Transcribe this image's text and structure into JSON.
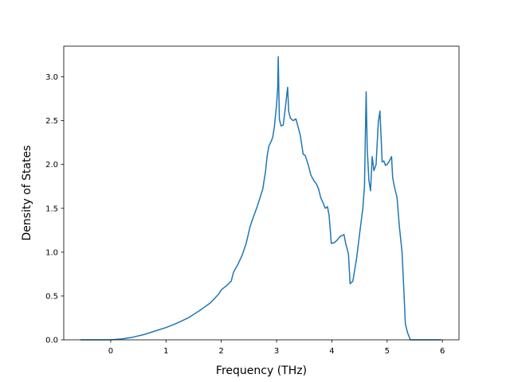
{
  "chart_data": {
    "type": "line",
    "title": "",
    "xlabel": "Frequency (THz)",
    "ylabel": "Density of States",
    "xlim": [
      -0.85,
      6.3
    ],
    "ylim": [
      0,
      3.35
    ],
    "xticks": [
      0,
      1,
      2,
      3,
      4,
      5,
      6
    ],
    "xtick_labels": [
      "0",
      "1",
      "2",
      "3",
      "4",
      "5",
      "6"
    ],
    "yticks": [
      0,
      0.5,
      1.0,
      1.5,
      2.0,
      2.5,
      3.0
    ],
    "ytick_labels": [
      "0.0",
      "0.5",
      "1.0",
      "1.5",
      "2.0",
      "2.5",
      "3.0"
    ],
    "grid": false,
    "legend": "none",
    "colors": {
      "line": "#1f77b4",
      "axes": "#000000"
    },
    "series": [
      {
        "x": [
          -0.55,
          -0.3,
          0.0,
          0.2,
          0.4,
          0.6,
          0.8,
          1.0,
          1.2,
          1.4,
          1.6,
          1.8,
          1.95,
          2.0,
          2.1,
          2.18,
          2.22,
          2.3,
          2.38,
          2.45,
          2.52,
          2.58,
          2.65,
          2.7,
          2.75,
          2.8,
          2.83,
          2.86,
          2.9,
          2.93,
          2.96,
          3.0,
          3.02,
          3.03,
          3.05,
          3.08,
          3.12,
          3.15,
          3.2,
          3.22,
          3.25,
          3.3,
          3.35,
          3.38,
          3.43,
          3.48,
          3.52,
          3.58,
          3.62,
          3.68,
          3.72,
          3.76,
          3.8,
          3.85,
          3.88,
          3.92,
          3.95,
          3.99,
          4.05,
          4.1,
          4.15,
          4.22,
          4.25,
          4.3,
          4.33,
          4.38,
          4.45,
          4.5,
          4.56,
          4.59,
          4.62,
          4.64,
          4.67,
          4.7,
          4.73,
          4.76,
          4.8,
          4.84,
          4.87,
          4.91,
          4.94,
          4.97,
          5.0,
          5.04,
          5.08,
          5.1,
          5.13,
          5.18,
          5.22,
          5.27,
          5.3,
          5.33,
          5.37,
          5.42,
          5.6,
          5.8,
          5.98
        ],
        "y": [
          0.0,
          0.0,
          0.0,
          0.01,
          0.03,
          0.06,
          0.1,
          0.14,
          0.19,
          0.25,
          0.33,
          0.42,
          0.52,
          0.57,
          0.62,
          0.67,
          0.77,
          0.86,
          0.97,
          1.1,
          1.29,
          1.4,
          1.52,
          1.62,
          1.72,
          1.92,
          2.1,
          2.21,
          2.26,
          2.31,
          2.43,
          2.68,
          2.88,
          3.23,
          2.52,
          2.44,
          2.45,
          2.6,
          2.88,
          2.6,
          2.53,
          2.5,
          2.52,
          2.45,
          2.33,
          2.12,
          2.1,
          1.98,
          1.88,
          1.81,
          1.78,
          1.72,
          1.62,
          1.55,
          1.5,
          1.52,
          1.42,
          1.1,
          1.11,
          1.14,
          1.18,
          1.2,
          1.1,
          0.98,
          0.64,
          0.67,
          0.94,
          1.2,
          1.5,
          1.75,
          2.83,
          2.18,
          1.82,
          1.7,
          2.09,
          1.93,
          2.0,
          2.48,
          2.61,
          2.03,
          2.04,
          1.99,
          2.0,
          2.04,
          2.09,
          1.85,
          1.75,
          1.62,
          1.3,
          1.0,
          0.6,
          0.18,
          0.08,
          0.0,
          0.0,
          0.0,
          0.0
        ]
      }
    ]
  }
}
